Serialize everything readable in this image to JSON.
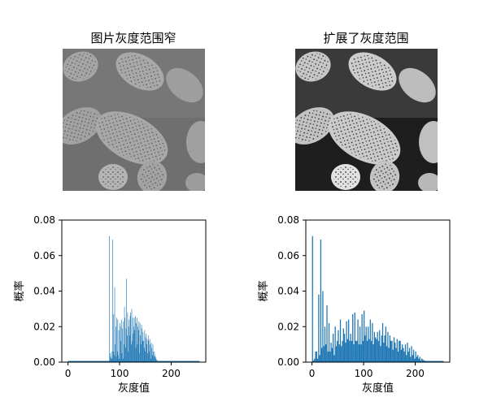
{
  "figure": {
    "left_title": "图片灰度范围窄",
    "right_title": "扩展了灰度范围"
  },
  "images": {
    "left": {
      "description_name": "narrow-gray-range-image"
    },
    "right": {
      "description_name": "expanded-gray-range-image"
    }
  },
  "chart_data": [
    {
      "type": "bar",
      "title": "",
      "xlabel": "灰度值",
      "ylabel": "概率",
      "xlim": [
        -12,
        267
      ],
      "ylim": [
        0,
        0.08
      ],
      "xticks": [
        0,
        100,
        200
      ],
      "yticks": [
        "0.00",
        "0.02",
        "0.04",
        "0.06",
        "0.08"
      ],
      "color": "#1f77b4",
      "x": [
        80,
        81,
        82,
        83,
        84,
        85,
        86,
        87,
        88,
        89,
        90,
        91,
        92,
        93,
        94,
        95,
        96,
        97,
        98,
        99,
        100,
        101,
        102,
        103,
        104,
        105,
        106,
        107,
        108,
        109,
        110,
        111,
        112,
        113,
        114,
        115,
        116,
        117,
        118,
        119,
        120,
        121,
        122,
        123,
        124,
        125,
        126,
        127,
        128,
        129,
        130,
        131,
        132,
        133,
        134,
        135,
        136,
        137,
        138,
        139,
        140,
        141,
        142,
        143,
        144,
        145,
        146,
        147,
        148,
        149,
        150,
        151,
        152,
        153,
        154,
        155,
        156,
        157,
        158,
        159,
        160,
        161,
        162,
        163,
        164,
        165,
        166,
        167,
        168,
        169,
        170,
        171,
        172,
        173,
        174,
        175,
        176,
        177,
        178,
        179,
        180,
        181,
        182,
        183,
        184,
        185,
        186,
        187,
        188,
        189,
        190,
        191,
        192,
        193,
        194,
        195
      ],
      "values": [
        0.071,
        0.005,
        0.003,
        0.002,
        0.006,
        0.002,
        0.069,
        0.006,
        0.027,
        0.004,
        0.042,
        0.01,
        0.02,
        0.003,
        0.025,
        0.006,
        0.024,
        0.004,
        0.018,
        0.002,
        0.022,
        0.02,
        0.012,
        0.024,
        0.005,
        0.019,
        0.002,
        0.023,
        0.01,
        0.031,
        0.025,
        0.008,
        0.019,
        0.047,
        0.015,
        0.028,
        0.006,
        0.02,
        0.024,
        0.015,
        0.026,
        0.028,
        0.01,
        0.03,
        0.012,
        0.025,
        0.016,
        0.02,
        0.025,
        0.018,
        0.026,
        0.008,
        0.022,
        0.025,
        0.01,
        0.02,
        0.018,
        0.023,
        0.005,
        0.022,
        0.015,
        0.01,
        0.021,
        0.019,
        0.012,
        0.017,
        0.012,
        0.008,
        0.018,
        0.006,
        0.014,
        0.016,
        0.01,
        0.013,
        0.005,
        0.015,
        0.012,
        0.006,
        0.013,
        0.01,
        0.002,
        0.011,
        0.008,
        0.004,
        0.01,
        0.006,
        0.003,
        0.006,
        0.004,
        0.002,
        0.003,
        0.0015,
        0.001,
        0.0008,
        0.0005,
        0.0003,
        0,
        0,
        0,
        0,
        0,
        0,
        0,
        0,
        0,
        0,
        0,
        0,
        0,
        0,
        0,
        0,
        0,
        0,
        0,
        0
      ]
    },
    {
      "type": "bar",
      "title": "",
      "xlabel": "灰度值",
      "ylabel": "概率",
      "xlim": [
        -12,
        267
      ],
      "ylim": [
        0,
        0.08
      ],
      "xticks": [
        0,
        100,
        200
      ],
      "yticks": [
        "0.00",
        "0.02",
        "0.04",
        "0.06",
        "0.08"
      ],
      "color": "#1f77b4",
      "x": [
        0,
        2,
        4,
        6,
        8,
        10,
        12,
        14,
        16,
        18,
        20,
        22,
        24,
        26,
        28,
        30,
        32,
        34,
        36,
        38,
        40,
        42,
        44,
        46,
        48,
        50,
        52,
        54,
        56,
        58,
        60,
        62,
        64,
        66,
        68,
        70,
        72,
        74,
        76,
        78,
        80,
        82,
        84,
        86,
        88,
        90,
        92,
        94,
        96,
        98,
        100,
        102,
        104,
        106,
        108,
        110,
        112,
        114,
        116,
        118,
        120,
        122,
        124,
        126,
        128,
        130,
        132,
        134,
        136,
        138,
        140,
        142,
        144,
        146,
        148,
        150,
        152,
        154,
        156,
        158,
        160,
        162,
        164,
        166,
        168,
        170,
        172,
        174,
        176,
        178,
        180,
        182,
        184,
        186,
        188,
        190,
        192,
        194,
        196,
        198,
        200,
        202,
        204,
        206,
        208,
        210,
        212,
        214,
        216,
        218,
        220,
        222,
        224,
        226,
        228,
        230,
        232,
        234,
        236,
        238
      ],
      "values": [
        0.071,
        0.001,
        0.002,
        0.006,
        0.006,
        0.002,
        0.038,
        0.004,
        0.069,
        0.008,
        0.04,
        0.009,
        0.02,
        0.01,
        0.032,
        0.006,
        0.022,
        0.006,
        0.011,
        0.008,
        0.016,
        0.004,
        0.02,
        0.009,
        0.012,
        0.018,
        0.01,
        0.024,
        0.009,
        0.012,
        0.019,
        0.016,
        0.011,
        0.023,
        0.013,
        0.024,
        0.012,
        0.016,
        0.012,
        0.027,
        0.01,
        0.028,
        0.012,
        0.012,
        0.024,
        0.01,
        0.02,
        0.01,
        0.027,
        0.012,
        0.029,
        0.015,
        0.02,
        0.012,
        0.02,
        0.013,
        0.024,
        0.012,
        0.022,
        0.01,
        0.017,
        0.014,
        0.013,
        0.017,
        0.012,
        0.018,
        0.009,
        0.015,
        0.022,
        0.011,
        0.015,
        0.02,
        0.009,
        0.017,
        0.008,
        0.015,
        0.012,
        0.012,
        0.007,
        0.014,
        0.011,
        0.008,
        0.013,
        0.006,
        0.012,
        0.012,
        0.007,
        0.01,
        0.008,
        0.006,
        0.01,
        0.004,
        0.011,
        0.006,
        0.008,
        0.003,
        0.009,
        0.004,
        0.007,
        0.002,
        0.006,
        0.003,
        0.004,
        0.002,
        0.003,
        0.001,
        0.002,
        0.0015,
        0.001,
        0.0008,
        0.0005,
        0.0003,
        0.0002,
        0,
        0,
        0,
        0,
        0,
        0,
        0
      ]
    }
  ]
}
